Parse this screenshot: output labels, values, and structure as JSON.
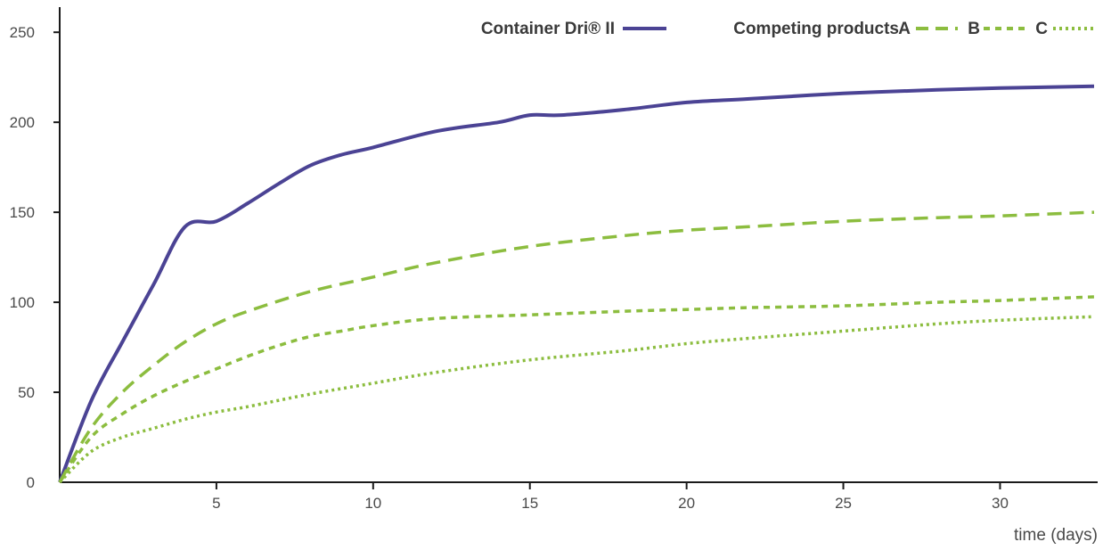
{
  "chart_data": {
    "type": "line",
    "title": "",
    "xlabel": "time (days)",
    "ylabel": "",
    "xlim": [
      0,
      33
    ],
    "ylim": [
      0,
      260
    ],
    "xticks": [
      5,
      10,
      15,
      20,
      25,
      30
    ],
    "yticks": [
      0,
      50,
      100,
      150,
      200,
      250
    ],
    "grid": false,
    "legend_position": "top-right",
    "legend": {
      "main_label": "Container Dri® II",
      "competing_label": "Competing products",
      "a_label": "A",
      "b_label": "B",
      "c_label": "C"
    },
    "series": [
      {
        "name": "Container Dri® II",
        "color": "#4b4394",
        "style": "solid",
        "x": [
          0,
          1,
          2,
          3,
          4,
          5,
          6,
          7,
          8,
          9,
          10,
          12,
          14,
          15,
          16,
          18,
          20,
          22,
          25,
          28,
          30,
          33
        ],
        "y": [
          0,
          45,
          78,
          110,
          142,
          145,
          155,
          166,
          176,
          182,
          186,
          195,
          200,
          204,
          204,
          207,
          211,
          213,
          216,
          218,
          219,
          220
        ]
      },
      {
        "name": "A",
        "color": "#8cbd3f",
        "style": "dash",
        "x": [
          0,
          1,
          2,
          3,
          4,
          5,
          6,
          8,
          10,
          12,
          15,
          18,
          20,
          22,
          25,
          28,
          30,
          33
        ],
        "y": [
          0,
          30,
          50,
          65,
          78,
          88,
          95,
          106,
          114,
          122,
          131,
          137,
          140,
          142,
          145,
          147,
          148,
          150
        ]
      },
      {
        "name": "B",
        "color": "#8cbd3f",
        "style": "shortdash",
        "x": [
          0,
          1,
          2,
          3,
          4,
          5,
          6,
          7,
          8,
          9,
          10,
          12,
          15,
          18,
          20,
          22,
          25,
          28,
          30,
          33
        ],
        "y": [
          0,
          25,
          38,
          48,
          56,
          63,
          70,
          76,
          81,
          84,
          87,
          91,
          93,
          95,
          96,
          97,
          98,
          100,
          101,
          103
        ]
      },
      {
        "name": "C",
        "color": "#8cbd3f",
        "style": "dot",
        "x": [
          0,
          1,
          2,
          3,
          4,
          5,
          6,
          8,
          10,
          12,
          15,
          18,
          20,
          22,
          25,
          28,
          30,
          33
        ],
        "y": [
          0,
          17,
          25,
          30,
          35,
          39,
          42,
          49,
          55,
          61,
          68,
          73,
          77,
          80,
          84,
          88,
          90,
          92
        ]
      }
    ]
  }
}
